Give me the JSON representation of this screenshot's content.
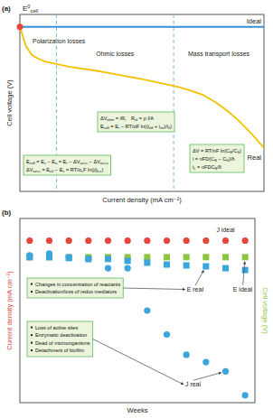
{
  "chart_data": [
    {
      "type": "line",
      "title": "(a)",
      "x_label": "Current density (mA cm⁻²)",
      "y_label": "Cell voltage (V)",
      "xlim": [
        0,
        10
      ],
      "ylim": [
        0,
        10
      ],
      "tick_labels": false,
      "x": [
        0,
        0.25,
        0.5,
        0.75,
        1,
        1.5,
        2,
        3,
        4,
        5,
        6,
        6.5,
        7,
        7.5,
        8,
        8.5,
        9,
        9.5,
        10
      ],
      "series": [
        {
          "name": "Ideal",
          "color": "#3a8fd6",
          "values": [
            9.3,
            9.3,
            9.3,
            9.3,
            9.3,
            9.3,
            9.3,
            9.3,
            9.3,
            9.3,
            9.3,
            9.3,
            9.3,
            9.3,
            9.3,
            9.3,
            9.3,
            9.3,
            9.3
          ]
        },
        {
          "name": "Real",
          "color": "#f2c200",
          "values": [
            9.3,
            8.2,
            7.7,
            7.5,
            7.35,
            7.2,
            7.05,
            6.85,
            6.6,
            6.35,
            6.05,
            5.9,
            5.7,
            5.45,
            5.05,
            4.55,
            3.95,
            3.25,
            2.45
          ]
        }
      ],
      "e0_marker": {
        "label": [
          "E",
          {
            "sup": "0"
          },
          {
            "sub": "cell"
          }
        ],
        "x": 0,
        "y": 9.3,
        "color": "#e8453c"
      },
      "regions": [
        {
          "label": "Polarization losses",
          "from": 0,
          "to": 1.5
        },
        {
          "label": "Ohmic losses",
          "from": 1.5,
          "to": 6.3
        },
        {
          "label": "Mass transport losses",
          "from": 6.3,
          "to": 10
        }
      ],
      "equation_boxes": [
        [
          [
            "E",
            {
              "sub": "cell"
            },
            " = E",
            {
              "sub": "c"
            },
            " − E",
            {
              "sub": "a"
            },
            " = E",
            {
              "sub": "r"
            },
            " − ΔV",
            {
              "sub": "act,c"
            },
            " − ΔV",
            {
              "sub": "act,a"
            }
          ],
          [
            "ΔV",
            {
              "sub": "act,c"
            },
            " = E",
            {
              "sub": "c0"
            },
            " − E",
            {
              "sub": "c"
            },
            " = RT/α",
            {
              "sub": "c"
            },
            "F ln(j/j",
            {
              "sub": "0,c"
            },
            ")"
          ]
        ],
        [
          [
            "ΔV",
            {
              "sub": "ohm"
            },
            " = iR",
            {
              "sub": "i"
            },
            "    R",
            {
              "sub": "el"
            },
            " = ρ l/A"
          ],
          [
            "E",
            {
              "sub": "cell"
            },
            " = E",
            {
              "sub": "r"
            },
            " − RT/αF ln((i",
            {
              "sub": "eff"
            },
            " + i",
            {
              "sub": "int"
            },
            ")/i",
            {
              "sub": "0"
            },
            ")"
          ]
        ],
        [
          [
            "ΔV = RT/nF ln(C",
            {
              "sub": "B"
            },
            "/C",
            {
              "sub": "S"
            },
            ")"
          ],
          [
            "i = nFD(C",
            {
              "sub": "B"
            },
            " − C",
            {
              "sub": "S"
            },
            ")/δ"
          ],
          [
            "i",
            {
              "sub": "L"
            },
            " = nFDC",
            {
              "sub": "B"
            },
            "/δ"
          ]
        ]
      ]
    },
    {
      "type": "scatter",
      "title": "(b)",
      "x_label": "Weeks",
      "y_label": "Current density (mA cm⁻²)",
      "y2_label": "Cell voltage (V)",
      "xlim": [
        0.5,
        12.5
      ],
      "ylim": [
        0,
        10
      ],
      "y2lim": [
        0,
        10
      ],
      "tick_labels": false,
      "x": [
        1,
        2,
        3,
        4,
        5,
        6,
        7,
        8,
        9,
        10,
        11,
        12
      ],
      "series": [
        {
          "name": "J ideal",
          "color": "#e8453c",
          "marker": "circle",
          "values": [
            8.8,
            8.8,
            8.8,
            8.8,
            8.8,
            8.8,
            8.8,
            8.8,
            8.8,
            8.8,
            8.8,
            8.8
          ]
        },
        {
          "name": "E ideal",
          "color": "#8cc63f",
          "marker": "square",
          "axis": "y2",
          "values": [
            7.9,
            7.9,
            7.9,
            7.9,
            7.9,
            7.9,
            7.9,
            7.9,
            7.9,
            7.9,
            7.9,
            7.9
          ]
        },
        {
          "name": "E real",
          "color": "#3aa6dd",
          "marker": "square",
          "axis": "y2",
          "values": [
            7.9,
            7.9,
            7.85,
            7.8,
            7.8,
            7.7,
            7.6,
            7.5,
            7.45,
            7.4,
            7.3,
            7.2
          ]
        },
        {
          "name": "J real",
          "color": "#3aa6dd",
          "marker": "circle",
          "values": [
            8.0,
            8.1,
            7.9,
            7.8,
            7.3,
            7.3,
            5.0,
            3.7,
            2.6,
            2.2,
            1.7,
            0.4
          ]
        }
      ],
      "annotations": [
        {
          "target": "E real",
          "items": [
            "Changes in concentration of reactants",
            "Deactivation/loss of redox mediators"
          ]
        },
        {
          "target": "J real",
          "items": [
            "Loss of active sites",
            "Enzymatic deactivation",
            "Dead of microorganisms",
            "Detachment of biofilm"
          ]
        }
      ]
    }
  ]
}
